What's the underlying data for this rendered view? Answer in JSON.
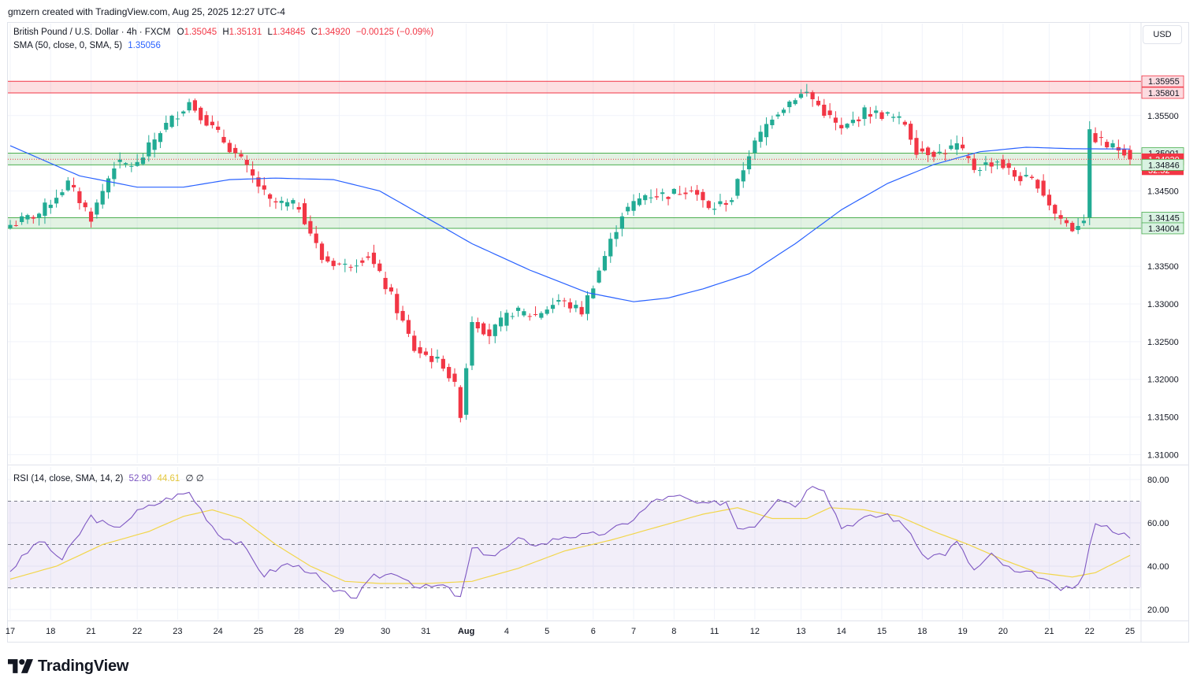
{
  "header": {
    "credit": "gmzern created with TradingView.com, Aug 25, 2025 12:27 UTC-4"
  },
  "legend": {
    "title": "British Pound / U.S. Dollar · 4h · FXCM",
    "o_label": "O",
    "o_val": "1.35045",
    "h_label": "H",
    "h_val": "1.35131",
    "l_label": "L",
    "l_val": "1.34845",
    "c_label": "C",
    "c_val": "1.34920",
    "change": "−0.00125 (−0.09%)",
    "sma_label": "SMA (50, close, 0, SMA, 5)",
    "sma_val": "1.35056",
    "rsi_label": "RSI (14, close, SMA, 14, 2)",
    "rsi_val": "52.90",
    "rsi_ma_val": "44.61",
    "rsi_extra": "∅ ∅"
  },
  "currency_button": "USD",
  "footer": {
    "brand": "TradingView"
  },
  "colors": {
    "up": "#22ab94",
    "down": "#f23645",
    "sma": "#2962ff",
    "rsi": "#7e57c2",
    "rsi_ma": "#f2d64b"
  },
  "chart_data": [
    {
      "type": "candlestick",
      "symbol": "GBPUSD",
      "timeframe": "4h",
      "ylim": [
        1.309,
        1.3625
      ],
      "price_ticks": [
        "1.35500",
        "1.35000",
        "1.34500",
        "1.33500",
        "1.33000",
        "1.32500",
        "1.32000",
        "1.31500",
        "1.31000"
      ],
      "price_ticks_values": [
        1.355,
        1.35,
        1.345,
        1.335,
        1.33,
        1.325,
        1.32,
        1.315,
        1.31
      ],
      "x_labels": [
        "17",
        "18",
        "21",
        "22",
        "23",
        "24",
        "25",
        "28",
        "29",
        "30",
        "31",
        "Aug",
        "4",
        "5",
        "6",
        "7",
        "8",
        "11",
        "12",
        "13",
        "14",
        "15",
        "18",
        "19",
        "20",
        "21",
        "22",
        "25"
      ],
      "zones": [
        {
          "from": 1.35801,
          "to": 1.35955,
          "color": "red"
        },
        {
          "from": 1.34846,
          "to": 1.35001,
          "color": "green"
        },
        {
          "from": 1.34004,
          "to": 1.34145,
          "color": "green"
        }
      ],
      "price_labels": [
        {
          "value": 1.35955,
          "text": "1.35955",
          "style": "red"
        },
        {
          "value": 1.35801,
          "text": "1.35801",
          "style": "red"
        },
        {
          "value": 1.35001,
          "text": "1.35001",
          "style": "green"
        },
        {
          "value": 1.3492,
          "text": "1.34920",
          "style": "last"
        },
        {
          "value": 1.34846,
          "text": "1.34846",
          "style": "green"
        },
        {
          "value": 1.34145,
          "text": "1.34145",
          "style": "green"
        },
        {
          "value": 1.34004,
          "text": "1.34004",
          "style": "green"
        }
      ],
      "countdown": "32:52",
      "anchors": [
        {
          "i": 0,
          "p": 1.3405
        },
        {
          "i": 5,
          "p": 1.342
        },
        {
          "i": 10,
          "p": 1.346
        },
        {
          "i": 14,
          "p": 1.3415
        },
        {
          "i": 18,
          "p": 1.3485
        },
        {
          "i": 22,
          "p": 1.3485
        },
        {
          "i": 26,
          "p": 1.353
        },
        {
          "i": 31,
          "p": 1.3568
        },
        {
          "i": 36,
          "p": 1.3525
        },
        {
          "i": 40,
          "p": 1.349
        },
        {
          "i": 45,
          "p": 1.3435
        },
        {
          "i": 50,
          "p": 1.343
        },
        {
          "i": 54,
          "p": 1.336
        },
        {
          "i": 58,
          "p": 1.335
        },
        {
          "i": 62,
          "p": 1.3365
        },
        {
          "i": 66,
          "p": 1.331
        },
        {
          "i": 70,
          "p": 1.324
        },
        {
          "i": 75,
          "p": 1.322
        },
        {
          "i": 77,
          "p": 1.319
        },
        {
          "i": 78,
          "p": 1.3155
        },
        {
          "i": 80,
          "p": 1.328
        },
        {
          "i": 83,
          "p": 1.326
        },
        {
          "i": 87,
          "p": 1.329
        },
        {
          "i": 91,
          "p": 1.3285
        },
        {
          "i": 95,
          "p": 1.3305
        },
        {
          "i": 99,
          "p": 1.329
        },
        {
          "i": 102,
          "p": 1.3345
        },
        {
          "i": 106,
          "p": 1.342
        },
        {
          "i": 110,
          "p": 1.3445
        },
        {
          "i": 114,
          "p": 1.3445
        },
        {
          "i": 118,
          "p": 1.3455
        },
        {
          "i": 121,
          "p": 1.3425
        },
        {
          "i": 125,
          "p": 1.344
        },
        {
          "i": 128,
          "p": 1.35
        },
        {
          "i": 132,
          "p": 1.355
        },
        {
          "i": 136,
          "p": 1.3575
        },
        {
          "i": 138,
          "p": 1.358
        },
        {
          "i": 141,
          "p": 1.3555
        },
        {
          "i": 144,
          "p": 1.353
        },
        {
          "i": 148,
          "p": 1.3555
        },
        {
          "i": 152,
          "p": 1.355
        },
        {
          "i": 155,
          "p": 1.354
        },
        {
          "i": 157,
          "p": 1.3505
        },
        {
          "i": 161,
          "p": 1.35
        },
        {
          "i": 164,
          "p": 1.351
        },
        {
          "i": 167,
          "p": 1.348
        },
        {
          "i": 171,
          "p": 1.349
        },
        {
          "i": 174,
          "p": 1.347
        },
        {
          "i": 178,
          "p": 1.346
        },
        {
          "i": 181,
          "p": 1.342
        },
        {
          "i": 184,
          "p": 1.34
        },
        {
          "i": 186,
          "p": 1.3415
        },
        {
          "i": 187,
          "p": 1.3525
        },
        {
          "i": 190,
          "p": 1.351
        },
        {
          "i": 193,
          "p": 1.3504
        },
        {
          "i": 194,
          "p": 1.3492
        }
      ],
      "sma_anchors": [
        {
          "i": 0,
          "p": 1.351
        },
        {
          "i": 12,
          "p": 1.347
        },
        {
          "i": 22,
          "p": 1.3455
        },
        {
          "i": 30,
          "p": 1.3455
        },
        {
          "i": 38,
          "p": 1.3465
        },
        {
          "i": 46,
          "p": 1.3467
        },
        {
          "i": 56,
          "p": 1.3465
        },
        {
          "i": 64,
          "p": 1.345
        },
        {
          "i": 72,
          "p": 1.3415
        },
        {
          "i": 80,
          "p": 1.338
        },
        {
          "i": 90,
          "p": 1.3345
        },
        {
          "i": 100,
          "p": 1.3315
        },
        {
          "i": 108,
          "p": 1.3303
        },
        {
          "i": 114,
          "p": 1.3308
        },
        {
          "i": 120,
          "p": 1.332
        },
        {
          "i": 128,
          "p": 1.334
        },
        {
          "i": 136,
          "p": 1.338
        },
        {
          "i": 144,
          "p": 1.3425
        },
        {
          "i": 152,
          "p": 1.346
        },
        {
          "i": 160,
          "p": 1.3485
        },
        {
          "i": 168,
          "p": 1.3502
        },
        {
          "i": 176,
          "p": 1.3508
        },
        {
          "i": 184,
          "p": 1.3506
        },
        {
          "i": 194,
          "p": 1.35056
        }
      ],
      "last_price": 1.3492,
      "candle_count": 195
    },
    {
      "type": "line",
      "name": "RSI",
      "ylim": [
        16,
        84
      ],
      "y_ticks": [
        "80.00",
        "60.00",
        "40.00",
        "20.00"
      ],
      "y_ticks_values": [
        80,
        60,
        40,
        20
      ],
      "levels": [
        70,
        50,
        30
      ],
      "rsi_anchors": [
        {
          "i": 0,
          "v": 38
        },
        {
          "i": 5,
          "v": 52
        },
        {
          "i": 9,
          "v": 43
        },
        {
          "i": 14,
          "v": 63
        },
        {
          "i": 18,
          "v": 57
        },
        {
          "i": 22,
          "v": 65
        },
        {
          "i": 28,
          "v": 72
        },
        {
          "i": 31,
          "v": 74
        },
        {
          "i": 36,
          "v": 55
        },
        {
          "i": 40,
          "v": 50
        },
        {
          "i": 44,
          "v": 36
        },
        {
          "i": 48,
          "v": 41
        },
        {
          "i": 52,
          "v": 38
        },
        {
          "i": 56,
          "v": 28
        },
        {
          "i": 60,
          "v": 26
        },
        {
          "i": 63,
          "v": 35
        },
        {
          "i": 67,
          "v": 37
        },
        {
          "i": 71,
          "v": 30
        },
        {
          "i": 75,
          "v": 31
        },
        {
          "i": 78,
          "v": 25
        },
        {
          "i": 80,
          "v": 48
        },
        {
          "i": 84,
          "v": 45
        },
        {
          "i": 88,
          "v": 52
        },
        {
          "i": 92,
          "v": 50
        },
        {
          "i": 96,
          "v": 54
        },
        {
          "i": 100,
          "v": 54
        },
        {
          "i": 104,
          "v": 56
        },
        {
          "i": 108,
          "v": 62
        },
        {
          "i": 112,
          "v": 71
        },
        {
          "i": 116,
          "v": 72
        },
        {
          "i": 120,
          "v": 68
        },
        {
          "i": 124,
          "v": 70
        },
        {
          "i": 126,
          "v": 58
        },
        {
          "i": 129,
          "v": 59
        },
        {
          "i": 133,
          "v": 72
        },
        {
          "i": 136,
          "v": 68
        },
        {
          "i": 139,
          "v": 78
        },
        {
          "i": 141,
          "v": 76
        },
        {
          "i": 144,
          "v": 58
        },
        {
          "i": 148,
          "v": 62
        },
        {
          "i": 152,
          "v": 64
        },
        {
          "i": 156,
          "v": 56
        },
        {
          "i": 158,
          "v": 44
        },
        {
          "i": 162,
          "v": 46
        },
        {
          "i": 164,
          "v": 51
        },
        {
          "i": 167,
          "v": 38
        },
        {
          "i": 170,
          "v": 45
        },
        {
          "i": 174,
          "v": 37
        },
        {
          "i": 178,
          "v": 36
        },
        {
          "i": 181,
          "v": 30
        },
        {
          "i": 184,
          "v": 29
        },
        {
          "i": 186,
          "v": 36
        },
        {
          "i": 188,
          "v": 61
        },
        {
          "i": 190,
          "v": 58
        },
        {
          "i": 192,
          "v": 56
        },
        {
          "i": 194,
          "v": 53
        }
      ],
      "rsi_ma_anchors": [
        {
          "i": 0,
          "v": 34
        },
        {
          "i": 8,
          "v": 40
        },
        {
          "i": 16,
          "v": 50
        },
        {
          "i": 24,
          "v": 56
        },
        {
          "i": 30,
          "v": 63
        },
        {
          "i": 35,
          "v": 66
        },
        {
          "i": 40,
          "v": 62
        },
        {
          "i": 46,
          "v": 50
        },
        {
          "i": 52,
          "v": 40
        },
        {
          "i": 58,
          "v": 33
        },
        {
          "i": 64,
          "v": 32
        },
        {
          "i": 72,
          "v": 32
        },
        {
          "i": 80,
          "v": 33
        },
        {
          "i": 88,
          "v": 39
        },
        {
          "i": 96,
          "v": 47
        },
        {
          "i": 104,
          "v": 52
        },
        {
          "i": 112,
          "v": 58
        },
        {
          "i": 120,
          "v": 64
        },
        {
          "i": 126,
          "v": 67
        },
        {
          "i": 132,
          "v": 62
        },
        {
          "i": 138,
          "v": 62
        },
        {
          "i": 142,
          "v": 67
        },
        {
          "i": 148,
          "v": 66
        },
        {
          "i": 154,
          "v": 63
        },
        {
          "i": 160,
          "v": 56
        },
        {
          "i": 166,
          "v": 50
        },
        {
          "i": 172,
          "v": 43
        },
        {
          "i": 178,
          "v": 37
        },
        {
          "i": 184,
          "v": 35
        },
        {
          "i": 188,
          "v": 37
        },
        {
          "i": 194,
          "v": 45
        }
      ],
      "current_rsi": 52.9,
      "current_ma": 44.61
    }
  ]
}
